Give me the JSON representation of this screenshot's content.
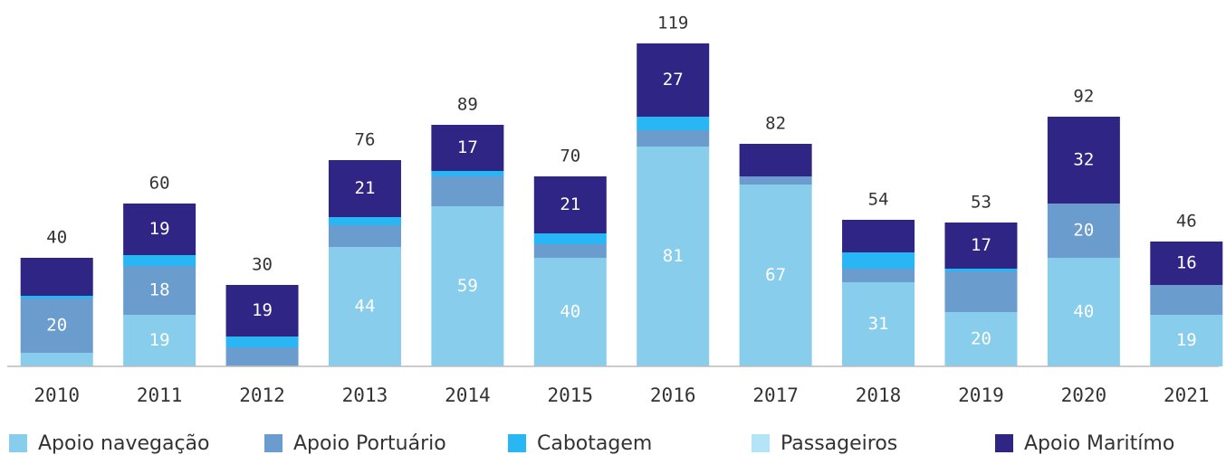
{
  "chart_data": {
    "type": "stacked_bar",
    "categories": [
      "2010",
      "2011",
      "2012",
      "2013",
      "2014",
      "2015",
      "2016",
      "2017",
      "2018",
      "2019",
      "2020",
      "2021"
    ],
    "series": [
      {
        "name": "Apoio navegação",
        "color": "#88cdec",
        "values": [
          5,
          19,
          0,
          44,
          59,
          40,
          81,
          67,
          31,
          20,
          40,
          19
        ]
      },
      {
        "name": "Apoio Portuário",
        "color": "#6a9dce",
        "values": [
          20,
          18,
          7,
          8,
          11,
          5,
          6,
          3,
          5,
          15,
          20,
          11
        ]
      },
      {
        "name": "Cabotagem",
        "color": "#29b6f4",
        "values": [
          1,
          4,
          4,
          3,
          2,
          4,
          5,
          0,
          6,
          1,
          0,
          0
        ]
      },
      {
        "name": "Passageiros",
        "color": "#b5e3f8",
        "values": [
          0,
          0,
          0,
          0,
          0,
          0,
          0,
          0,
          0,
          0,
          0,
          0
        ]
      },
      {
        "name": "Apoio Maritímo",
        "color": "#2f2584",
        "values": [
          14,
          19,
          19,
          21,
          17,
          21,
          27,
          12,
          12,
          17,
          32,
          16
        ]
      }
    ],
    "totals": [
      40,
      60,
      30,
      76,
      89,
      70,
      119,
      82,
      54,
      53,
      92,
      46
    ],
    "ylim": [
      0,
      125
    ]
  }
}
